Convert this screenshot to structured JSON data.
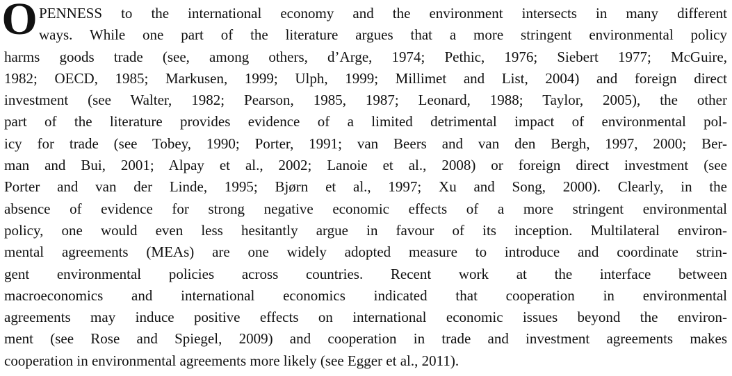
{
  "paragraph": {
    "drop_cap": "O",
    "lines": [
      "PENNESS to the international economy and the environment intersects in many different",
      "ways. While one part of the literature argues that a more stringent environmental policy",
      "harms goods trade (see, among others, d’Arge, 1974; Pethic, 1976; Siebert 1977; McGuire,",
      "1982; OECD, 1985; Markusen, 1999; Ulph, 1999; Millimet and List, 2004) and foreign direct",
      "investment (see Walter, 1982; Pearson, 1985, 1987; Leonard, 1988; Taylor, 2005), the other",
      "part of the literature provides evidence of a limited detrimental impact of environmental pol-",
      "icy for trade (see Tobey, 1990; Porter, 1991; van Beers and van den Bergh, 1997, 2000; Ber-",
      "man and Bui, 2001; Alpay et al., 2002; Lanoie et al., 2008) or foreign direct investment (see",
      "Porter and van der Linde, 1995; Bjørn et al., 1997; Xu and Song, 2000). Clearly, in the",
      "absence of evidence for strong negative economic effects of a more stringent environmental",
      "policy, one would even less hesitantly argue in favour of its inception. Multilateral environ-",
      "mental agreements (MEAs) are one widely adopted measure to introduce and coordinate strin-",
      "gent environmental policies across countries. Recent work at the interface between",
      "macroeconomics and international economics indicated that cooperation in environmental",
      "agreements may induce positive effects on international economic issues beyond the environ-",
      "ment (see Rose and Spiegel, 2009) and cooperation in trade and investment agreements makes",
      "cooperation in environmental agreements more likely (see Egger et al., 2011)."
    ]
  }
}
